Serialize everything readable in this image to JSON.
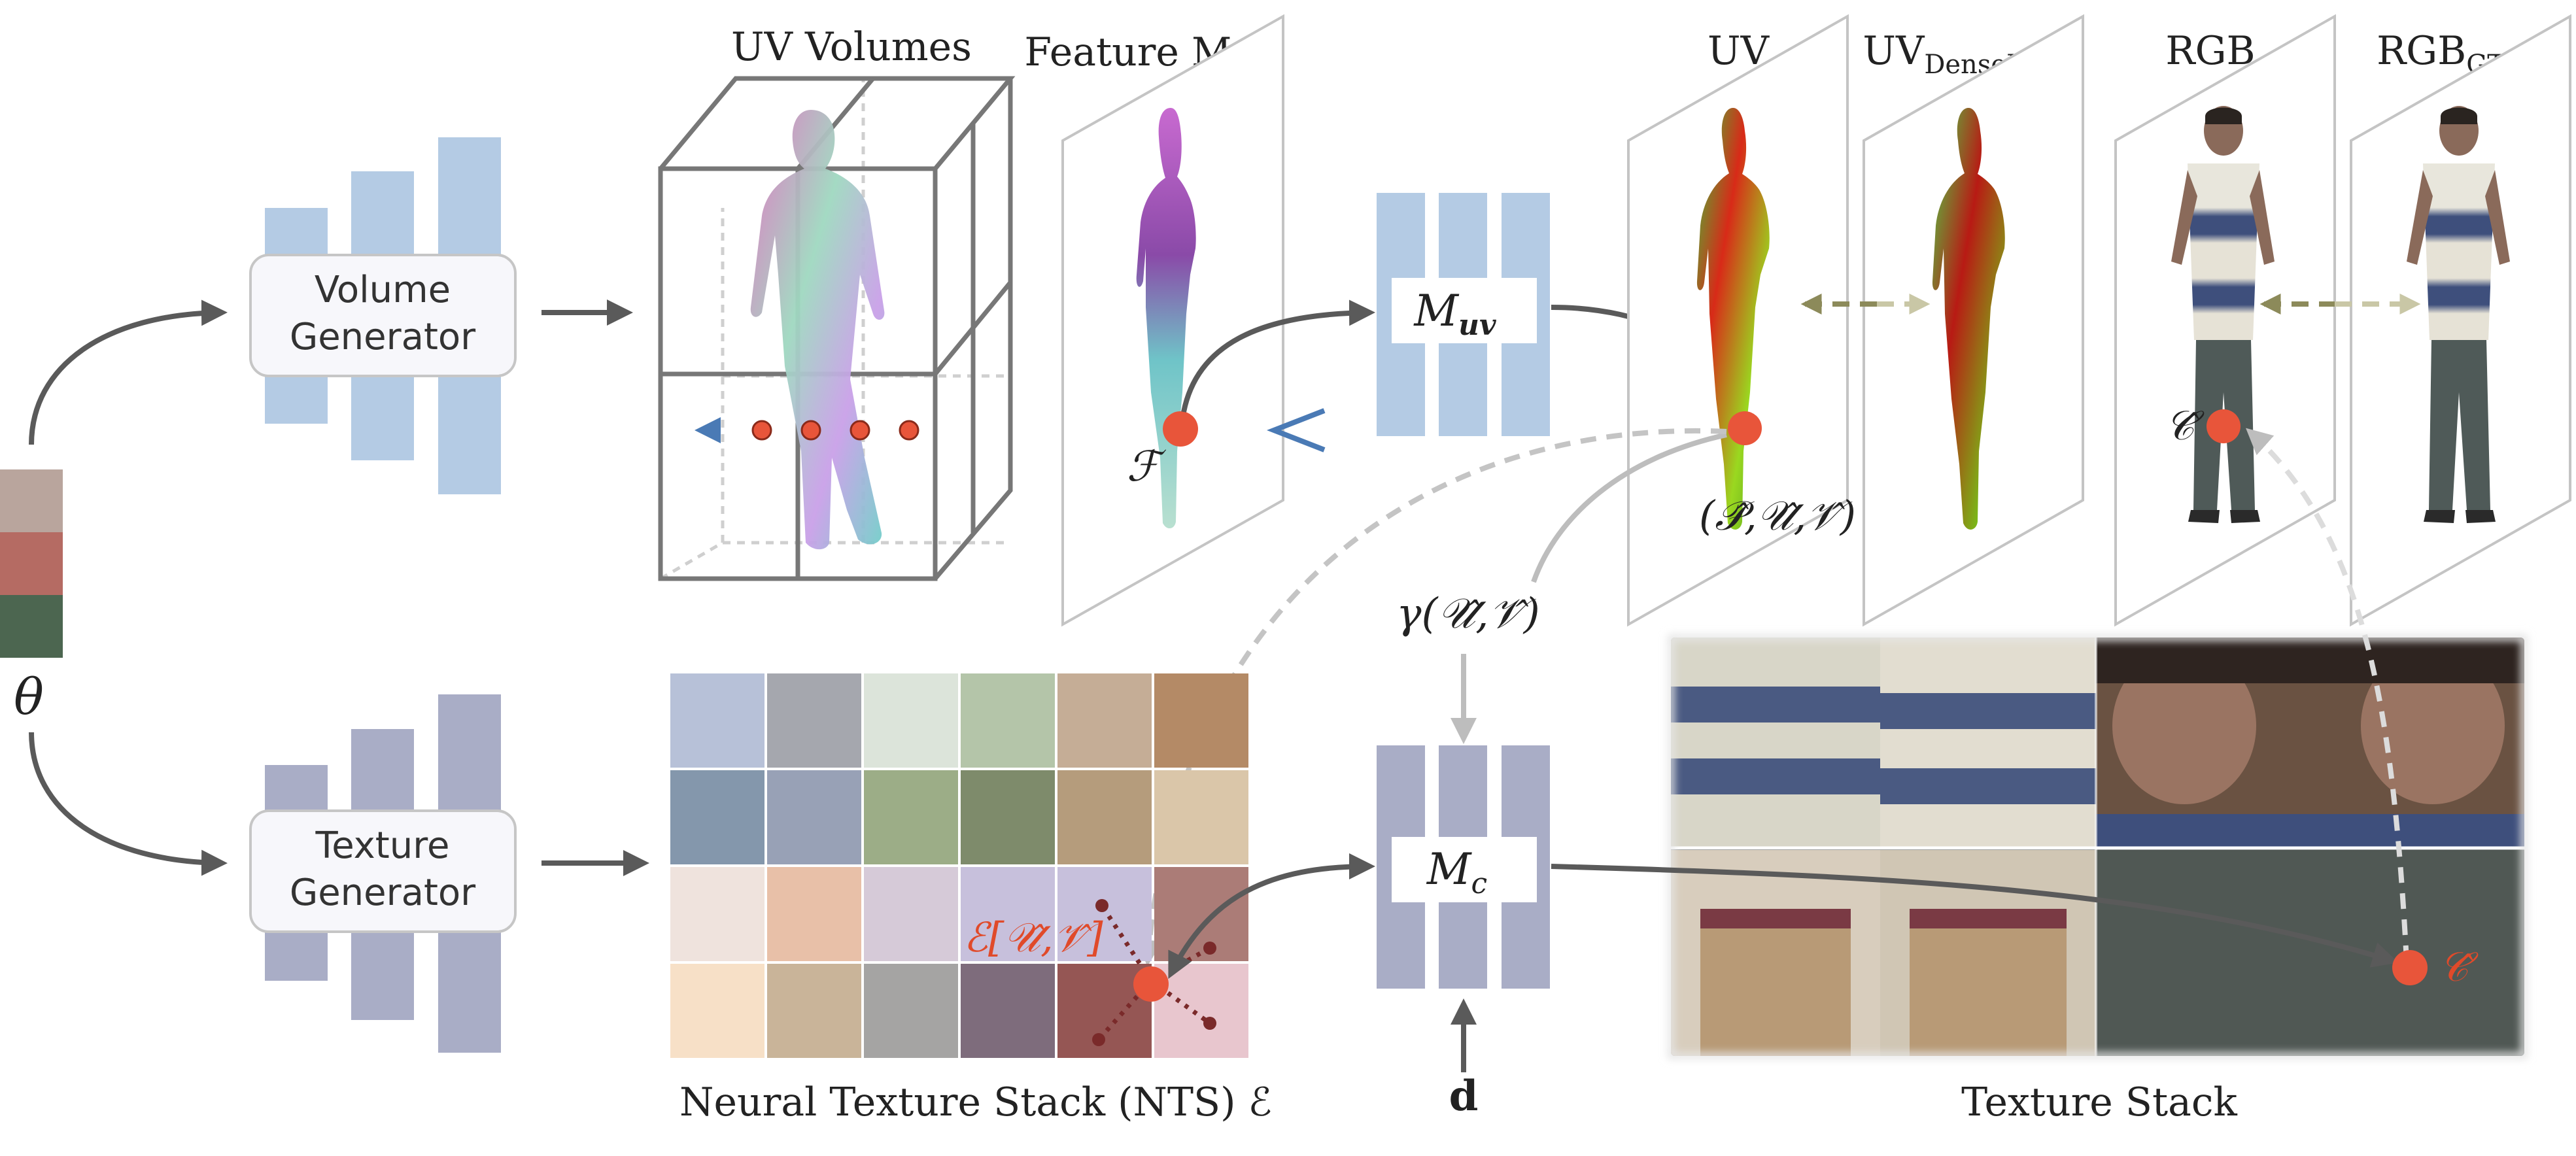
{
  "figure": {
    "theta": "θ",
    "volume_generator": [
      "Volume",
      "Generator"
    ],
    "texture_generator": [
      "Texture",
      "Generator"
    ],
    "titles": {
      "uv_volumes": "UV Volumes",
      "feature_map": "Feature Map",
      "uv": "UV",
      "uv_densepose": "UV",
      "uv_densepose_sub": "DensePose",
      "rgb": "RGB",
      "rgb_gt": "RGB",
      "rgb_gt_sub": "GT"
    },
    "m_uv": "M",
    "m_uv_sub": "uv",
    "m_c": "M",
    "m_c_sub": "c",
    "feature_symbol": "ℱ",
    "puv_label": "(𝒫̂,𝒰̂,𝒱̂)",
    "gamma_label": "γ(𝒰̂,𝒱̂)",
    "c_hat": "𝒞̂",
    "c_hat_2": "𝒞̂",
    "e_label": "ℰ[𝒰̂,𝒱̂]",
    "d_label": "d",
    "nts_caption": "Neural Texture Stack (NTS) ℰ",
    "texture_stack_caption": "Texture Stack"
  },
  "colors": {
    "volume_bars": "#b4cbe4",
    "texture_bars": "#a9adc6",
    "arrow": "#5a5a5a",
    "red_point": "#e8553a",
    "ray": "#4a7ab5",
    "dashed_arrow": "#c4c4c4",
    "compare_arrow": "#8c8a5a",
    "accent_text": "#e04a2a"
  },
  "theta_palette": [
    "#b9a59d",
    "#b56b63",
    "#4c6650"
  ],
  "nts_grid": [
    [
      "#b7c1d8",
      "#a5a7ae",
      "#dce4da",
      "#b4c5a9",
      "#c5ad96",
      "#b48a66"
    ],
    [
      "#8497ac",
      "#98a1b6",
      "#9cad87",
      "#7e8b6b",
      "#b59c7c",
      "#dac6a9"
    ],
    [
      "#efe3dd",
      "#e8c0a8",
      "#d6cad8",
      "#c7c0dc",
      "#c7c0dc",
      "#ab7c77"
    ],
    [
      "#f7e0c7",
      "#c9b499",
      "#a5a4a3",
      "#7e6c7c",
      "#955654",
      "#e8c6ce"
    ]
  ]
}
